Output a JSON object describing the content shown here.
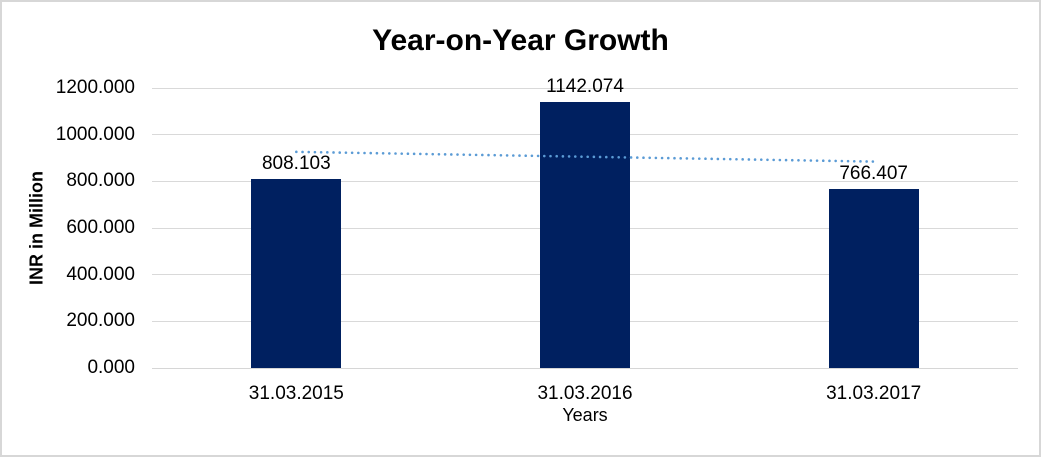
{
  "chart_data": {
    "type": "bar",
    "title": "Year-on-Year Growth",
    "xlabel": "Years",
    "ylabel": "INR in Million",
    "categories": [
      "31.03.2015",
      "31.03.2016",
      "31.03.2017"
    ],
    "values": [
      808.103,
      1142.074,
      766.407
    ],
    "data_labels": [
      "808.103",
      "1142.074",
      "766.407"
    ],
    "ylim": [
      0,
      1200
    ],
    "ytick_step": 200,
    "ytick_labels": [
      "0.000",
      "200.000",
      "400.000",
      "600.000",
      "800.000",
      "1000.000",
      "1200.000"
    ],
    "grid": true,
    "legend": "none",
    "trendline": {
      "style": "dotted",
      "shape": "linear",
      "start_value": 926.4,
      "end_value": 884.7
    },
    "colors": {
      "bar": "#002060",
      "trendline": "#5B9BD5",
      "gridline": "#D9D9D9",
      "axis_line": "#D6D6D6",
      "text": "#000000",
      "frame_border": "#D7D7D7",
      "background": "#FFFFFF"
    }
  }
}
